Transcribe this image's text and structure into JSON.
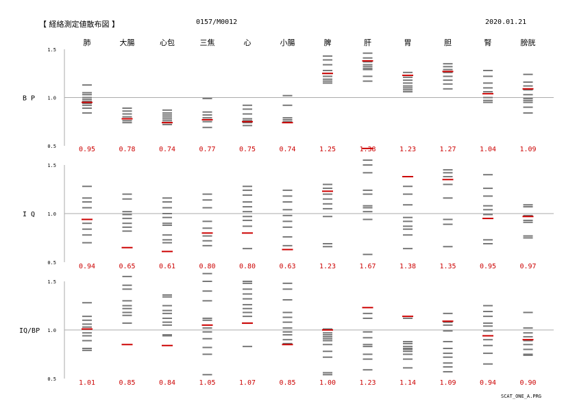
{
  "header": {
    "title": "【 経絡測定値散布図 】",
    "record_id": "0157/M0012",
    "date": "2020.01.21"
  },
  "footer": {
    "program": "SCAT_ONE_A.PRG"
  },
  "colors": {
    "marker": "#cc0000",
    "bar": "#777777",
    "line": "#aaaaaa",
    "text": "#000000"
  },
  "chart_data": [
    {
      "type": "scatter",
      "row_label": "B P",
      "categories": [
        "肺",
        "大腸",
        "心包",
        "三焦",
        "心",
        "小腸",
        "脾",
        "肝",
        "胃",
        "胆",
        "腎",
        "膀胱"
      ],
      "ylim": [
        0.5,
        1.5
      ],
      "ytick_labels": [
        "1.5",
        "1.0",
        "0.5"
      ],
      "reference_line": 1.0,
      "values": [
        0.95,
        0.78,
        0.74,
        0.77,
        0.75,
        0.74,
        1.25,
        1.38,
        1.23,
        1.27,
        1.04,
        1.09
      ],
      "value_labels": [
        "0.95",
        "0.78",
        "0.74",
        "0.77",
        "0.75",
        "0.74",
        "1.25",
        "1.38",
        "1.23",
        "1.27",
        "1.04",
        "1.09"
      ],
      "history": [
        [
          1.13,
          1.05,
          1.03,
          1.0,
          0.98,
          0.96,
          0.94,
          0.92,
          0.89,
          0.84
        ],
        [
          0.89,
          0.86,
          0.83,
          0.8,
          0.78,
          0.76,
          0.74
        ],
        [
          0.87,
          0.84,
          0.82,
          0.8,
          0.78,
          0.76,
          0.74,
          0.72
        ],
        [
          0.99,
          0.85,
          0.82,
          0.79,
          0.77,
          0.75,
          0.69
        ],
        [
          0.92,
          0.88,
          0.83,
          0.78,
          0.76,
          0.74,
          0.71
        ],
        [
          1.02,
          0.92,
          0.79,
          0.77,
          0.75
        ],
        [
          1.43,
          1.39,
          1.34,
          1.28,
          1.25,
          1.22,
          1.19,
          1.17,
          1.15
        ],
        [
          1.46,
          1.41,
          1.37,
          1.34,
          1.32,
          1.3,
          1.29,
          1.22,
          1.17
        ],
        [
          1.26,
          1.21,
          1.18,
          1.15,
          1.12,
          1.1,
          1.08,
          1.06
        ],
        [
          1.35,
          1.32,
          1.29,
          1.26,
          1.22,
          1.18,
          1.14,
          1.09
        ],
        [
          1.28,
          1.22,
          1.15,
          1.1,
          1.06,
          1.0,
          0.97,
          0.95
        ],
        [
          1.24,
          1.16,
          1.12,
          1.08,
          1.03,
          0.99,
          0.97,
          0.95,
          0.9,
          0.84
        ]
      ]
    },
    {
      "type": "scatter",
      "row_label": "I Q",
      "categories": [
        "肺",
        "大腸",
        "心包",
        "三焦",
        "心",
        "小腸",
        "脾",
        "肝",
        "胃",
        "胆",
        "腎",
        "膀胱"
      ],
      "ylim": [
        0.5,
        1.5
      ],
      "ytick_labels": [
        "1.5",
        "1.0",
        "0.5"
      ],
      "reference_line": 1.0,
      "values": [
        0.94,
        0.65,
        0.61,
        0.8,
        0.8,
        0.63,
        1.23,
        1.67,
        1.38,
        1.35,
        0.95,
        0.97
      ],
      "value_labels": [
        "0.94",
        "0.65",
        "0.61",
        "0.80",
        "0.80",
        "0.63",
        "1.23",
        "1.67",
        "1.38",
        "1.35",
        "0.95",
        "0.97"
      ],
      "history": [
        [
          1.28,
          1.16,
          1.12,
          1.06,
          0.9,
          0.84,
          0.78,
          0.7
        ],
        [
          1.2,
          1.15,
          1.02,
          0.99,
          0.95,
          0.9,
          0.86,
          0.82
        ],
        [
          1.16,
          1.12,
          1.06,
          1.0,
          0.96,
          0.9,
          0.88,
          0.78,
          0.73,
          0.7
        ],
        [
          1.2,
          1.14,
          1.06,
          0.92,
          0.85,
          0.77,
          0.72,
          0.67
        ],
        [
          1.28,
          1.24,
          1.19,
          1.12,
          1.07,
          1.02,
          0.97,
          0.93,
          0.87,
          0.64
        ],
        [
          1.24,
          1.18,
          1.12,
          1.04,
          0.98,
          0.92,
          0.86,
          0.76,
          0.67
        ],
        [
          1.3,
          1.26,
          1.2,
          1.15,
          1.1,
          1.05,
          0.97,
          0.69,
          0.66
        ],
        [
          1.55,
          1.5,
          1.42,
          1.24,
          1.2,
          1.08,
          1.06,
          1.02,
          0.94,
          0.58
        ],
        [
          1.28,
          1.2,
          1.09,
          0.96,
          0.92,
          0.87,
          0.84,
          0.78,
          0.64
        ],
        [
          1.45,
          1.42,
          1.38,
          1.3,
          1.16,
          0.94,
          0.89,
          0.66
        ],
        [
          1.4,
          1.26,
          1.18,
          1.08,
          1.04,
          0.99,
          0.73,
          0.69
        ],
        [
          1.09,
          1.07,
          0.98,
          0.93,
          0.91,
          0.77,
          0.75
        ]
      ]
    },
    {
      "type": "scatter",
      "row_label": "IQ/BP",
      "categories": [
        "肺",
        "大腸",
        "心包",
        "三焦",
        "心",
        "小腸",
        "脾",
        "肝",
        "胃",
        "胆",
        "腎",
        "膀胱"
      ],
      "ylim": [
        0.5,
        1.5
      ],
      "ytick_labels": [
        "1.5",
        "1.0",
        "0.5"
      ],
      "reference_line": 1.0,
      "values": [
        1.01,
        0.85,
        0.84,
        1.05,
        1.07,
        0.85,
        1.0,
        1.23,
        1.14,
        1.09,
        0.94,
        0.9
      ],
      "value_labels": [
        "1.01",
        "0.85",
        "0.84",
        "1.05",
        "1.07",
        "0.85",
        "1.00",
        "1.23",
        "1.14",
        "1.09",
        "0.94",
        "0.90"
      ],
      "history": [
        [
          1.28,
          1.14,
          1.1,
          1.06,
          1.03,
          0.97,
          0.94,
          0.89,
          0.81,
          0.79
        ],
        [
          1.55,
          1.46,
          1.42,
          1.3,
          1.25,
          1.22,
          1.18,
          1.15,
          1.07
        ],
        [
          1.36,
          1.34,
          1.25,
          1.2,
          1.17,
          1.12,
          1.08,
          1.05,
          0.95,
          0.94
        ],
        [
          1.58,
          1.5,
          1.4,
          1.3,
          1.12,
          1.1,
          1.02,
          0.98,
          0.91,
          0.82,
          0.75,
          0.54
        ],
        [
          1.5,
          1.48,
          1.42,
          1.37,
          1.32,
          1.26,
          1.22,
          1.18,
          1.14,
          1.07,
          0.83
        ],
        [
          1.48,
          1.42,
          1.31,
          1.18,
          1.13,
          1.08,
          1.02,
          0.98,
          0.95,
          0.9,
          0.86
        ],
        [
          1.01,
          0.97,
          0.95,
          0.93,
          0.91,
          0.89,
          0.85,
          0.78,
          0.72,
          0.56,
          0.54
        ],
        [
          1.17,
          1.12,
          0.98,
          0.92,
          0.85,
          0.83,
          0.75,
          0.7,
          0.59
        ],
        [
          1.12,
          0.88,
          0.86,
          0.83,
          0.81,
          0.8,
          0.78,
          0.75,
          0.7,
          0.61
        ],
        [
          1.17,
          1.08,
          1.05,
          0.99,
          0.88,
          0.81,
          0.76,
          0.72,
          0.66,
          0.62,
          0.57
        ],
        [
          1.25,
          1.19,
          1.14,
          1.07,
          1.04,
          0.99,
          0.94,
          0.9,
          0.84,
          0.76,
          0.65
        ],
        [
          1.18,
          1.02,
          0.97,
          0.93,
          0.89,
          0.85,
          0.8,
          0.75,
          0.74
        ]
      ]
    }
  ]
}
